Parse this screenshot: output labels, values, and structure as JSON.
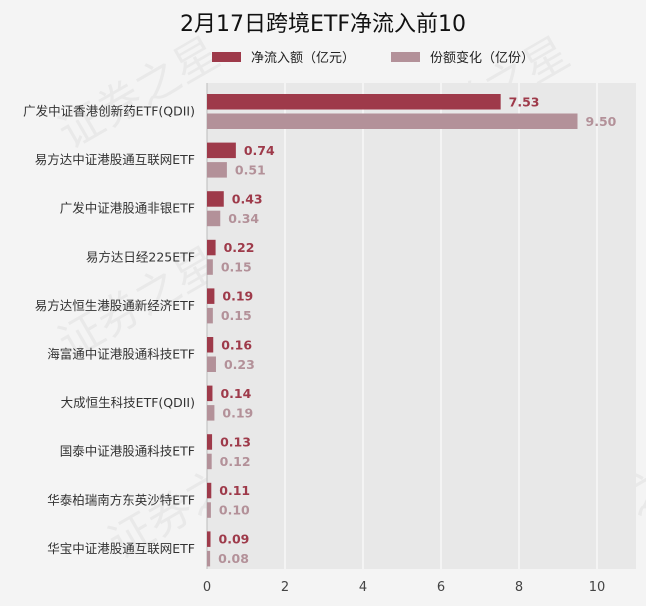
{
  "chart_data": {
    "type": "bar",
    "orientation": "horizontal",
    "title": "2月17日跨境ETF净流入前10",
    "categories": [
      "广发中证香港创新药ETF(QDII)",
      "易方达中证港股通互联网ETF",
      "广发中证港股通非银ETF",
      "易方达日经225ETF",
      "易方达恒生港股通新经济ETF",
      "海富通中证港股通科技ETF",
      "大成恒生科技ETF(QDII)",
      "国泰中证港股通科技ETF",
      "华泰柏瑞南方东英沙特ETF",
      "华宝中证港股通互联网ETF"
    ],
    "series": [
      {
        "name": "净流入额（亿元）",
        "color": "#9e3a4a",
        "values": [
          7.53,
          0.74,
          0.43,
          0.22,
          0.19,
          0.16,
          0.14,
          0.13,
          0.11,
          0.09
        ],
        "labels": [
          "7.53",
          "0.74",
          "0.43",
          "0.22",
          "0.19",
          "0.16",
          "0.14",
          "0.13",
          "0.11",
          "0.09"
        ]
      },
      {
        "name": "份额变化（亿份）",
        "color": "#b39199",
        "values": [
          9.5,
          0.51,
          0.34,
          0.15,
          0.15,
          0.23,
          0.19,
          0.12,
          0.1,
          0.08
        ],
        "labels": [
          "9.50",
          "0.51",
          "0.34",
          "0.15",
          "0.15",
          "0.23",
          "0.19",
          "0.12",
          "0.10",
          "0.08"
        ]
      }
    ],
    "x_ticks": [
      "0",
      "2",
      "4",
      "6",
      "8",
      "10"
    ],
    "xlim": [
      0,
      11
    ],
    "grid": true,
    "legend_position": "top"
  },
  "watermark": "证券之星"
}
